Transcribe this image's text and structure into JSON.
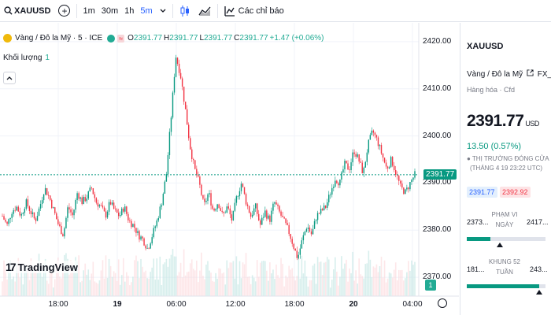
{
  "toolbar": {
    "symbol": "XAUUSD",
    "intervals": [
      "1m",
      "30m",
      "1h",
      "5m"
    ],
    "active_interval": "5m",
    "indicators_label": "Các chỉ báo"
  },
  "legend": {
    "title": "Vàng / Đô la Mỹ · 5 · ICE",
    "approx_symbol": "≈",
    "open_label": "O",
    "open": "2391.77",
    "high_label": "H",
    "high": "2391.77",
    "low_label": "L",
    "low": "2391.77",
    "close_label": "C",
    "close": "2391.77",
    "change": "+1.47 (+0.06%)",
    "volume_label": "Khối lượng",
    "volume_value": "1"
  },
  "branding": {
    "logo_text": "TradingView"
  },
  "chart_data": {
    "type": "candlestick",
    "y_ticks": [
      "2420.00",
      "2410.00",
      "2400.00",
      "2390.00",
      "2380.00",
      "2370.00"
    ],
    "ylim": [
      2366,
      2424
    ],
    "x_ticks": [
      {
        "label": "18:00",
        "bold": false
      },
      {
        "label": "19",
        "bold": true
      },
      {
        "label": "06:00",
        "bold": false
      },
      {
        "label": "12:00",
        "bold": false
      },
      {
        "label": "18:00",
        "bold": false
      },
      {
        "label": "20",
        "bold": true
      },
      {
        "label": "04:00",
        "bold": false
      }
    ],
    "last_price": "2391.77",
    "volume_tag": "1",
    "close_path": [
      2383,
      2381,
      2384,
      2385,
      2383,
      2386,
      2384,
      2382,
      2385,
      2389,
      2387,
      2384,
      2381,
      2379,
      2385,
      2383,
      2388,
      2386,
      2387,
      2389,
      2386,
      2385,
      2383,
      2386,
      2384,
      2383,
      2385,
      2382,
      2381,
      2379,
      2378,
      2376,
      2379,
      2382,
      2386,
      2392,
      2404,
      2417,
      2413,
      2406,
      2398,
      2393,
      2390,
      2385,
      2388,
      2384,
      2386,
      2383,
      2385,
      2382,
      2387,
      2390,
      2386,
      2383,
      2385,
      2381,
      2384,
      2382,
      2386,
      2384,
      2382,
      2380,
      2377,
      2374,
      2378,
      2381,
      2379,
      2383,
      2384,
      2385,
      2388,
      2391,
      2390,
      2394,
      2393,
      2397,
      2395,
      2392,
      2398,
      2401,
      2399,
      2396,
      2393,
      2395,
      2392,
      2389,
      2388,
      2390,
      2391.77
    ]
  },
  "side_panel": {
    "symbol": "XAUUSD",
    "name": "Vàng / Đô la Mỹ",
    "link_icon": "external-link-icon",
    "exchange": "FX_IDC",
    "category": "Hàng hóa · Cfd",
    "price": "2391.77",
    "currency": "USD",
    "change": "13.50 (0.57%)",
    "market_status": "● THỊ TRƯỜNG ĐÓNG CỬA",
    "status_date": "(THÁNG 4 19 23:22 UTC)",
    "bid": "2391.77",
    "ask": "2392.92",
    "day_range": {
      "low": "2373...",
      "high": "2417...",
      "label": "PHẠM VI NGÀY",
      "progress": 0.3
    },
    "week52_range": {
      "low": "181...",
      "high": "243...",
      "label": "KHUNG 52 TUẦN",
      "progress": 0.92
    }
  }
}
